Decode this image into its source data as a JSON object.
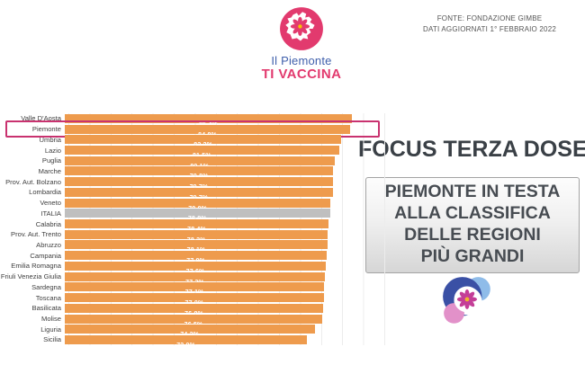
{
  "header": {
    "logo": {
      "line1": "Il Piemonte",
      "line2": "TI VACCINA"
    },
    "source": "FONTE: FONDAZIONE GIMBE\nDATI AGGIORNATI 1° FEBBRAIO 2022"
  },
  "right_panel": {
    "title": "FOCUS TERZA DOSE",
    "subtitle": "PIEMONTE IN TESTA\nALLA CLASSIFICA\nDELLE REGIONI\nPIÙ GRANDI"
  },
  "icons": {
    "top_logo": "piemonte-map-flower-badge",
    "bottom_logo": "tri-circle-flower-logo"
  },
  "colors": {
    "bar_orange": "#EE9B4D",
    "bar_gray": "#BFBFBF",
    "highlight_pink": "#C9326F",
    "brand_magenta": "#E23A6E",
    "brand_blue": "#4060AC",
    "title_dark": "#3A4046"
  },
  "chart_data": {
    "type": "bar",
    "orientation": "horizontal",
    "title": "",
    "xlabel": "",
    "ylabel": "",
    "xlim": [
      0,
      100
    ],
    "grid": "faint-vertical",
    "legend": "none",
    "categories": [
      "Valle D'Aosta",
      "Piemonte",
      "Umbria",
      "Lazio",
      "Puglia",
      "Marche",
      "Prov. Aut. Bolzano",
      "Lombardia",
      "Veneto",
      "ITALIA",
      "Calabria",
      "Prov. Aut. Trento",
      "Abruzzo",
      "Campania",
      "Emilia Romagna",
      "Friuli Venezia Giulia",
      "Sardegna",
      "Toscana",
      "Basilicata",
      "Molise",
      "Liguria",
      "Sicilia"
    ],
    "values": [
      85.4,
      84.8,
      82.2,
      81.5,
      80.1,
      79.8,
      79.7,
      79.7,
      79.0,
      78.8,
      78.4,
      78.2,
      78.1,
      77.9,
      77.6,
      77.3,
      77.1,
      77.0,
      76.8,
      76.5,
      74.2,
      72.0
    ],
    "value_labels": [
      "85,4%",
      "84,8%",
      "82,2%",
      "81,5%",
      "80,1%",
      "79,8%",
      "79,7%",
      "79,7%",
      "79,0%",
      "78,8%",
      "78,4%",
      "78,2%",
      "78,1%",
      "77,9%",
      "77,6%",
      "77,3%",
      "77,1%",
      "77,0%",
      "76,8%",
      "76,5%",
      "74,2%",
      "72,0%"
    ],
    "highlighted_category": "Piemonte",
    "muted_category": "ITALIA",
    "bar_color": "#EE9B4D",
    "muted_color": "#BFBFBF",
    "highlight_border_color": "#C9326F"
  }
}
